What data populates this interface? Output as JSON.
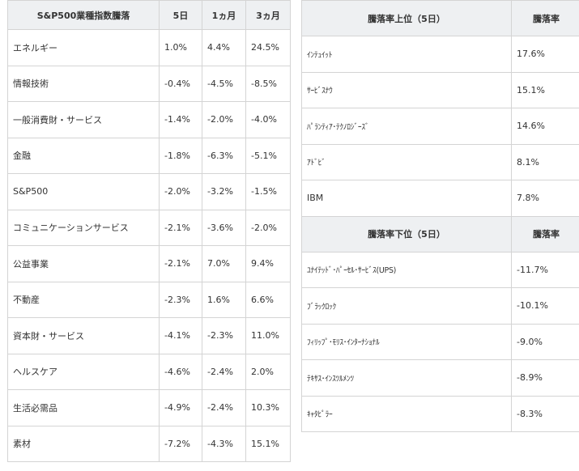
{
  "left_table": {
    "headers": [
      "S&P500業種指数騰落",
      "5日",
      "1ヵ月",
      "3ヵ月"
    ],
    "rows": [
      [
        "エネルギー",
        "1.0%",
        "4.4%",
        "24.5%"
      ],
      [
        "情報技術",
        "-0.4%",
        "-4.5%",
        "-8.5%"
      ],
      [
        "一般消費財・サービス",
        "-1.4%",
        "-2.0%",
        "-4.0%"
      ],
      [
        "金融",
        "-1.8%",
        "-6.3%",
        "-5.1%"
      ],
      [
        "S&P500",
        "-2.0%",
        "-3.2%",
        "-1.5%"
      ],
      [
        "コミュニケーションサービス",
        "-2.1%",
        "-3.6%",
        "-2.0%"
      ],
      [
        "公益事業",
        "-2.1%",
        "7.0%",
        "9.4%"
      ],
      [
        "不動産",
        "-2.3%",
        "1.6%",
        "6.6%"
      ],
      [
        "資本財・サービス",
        "-4.1%",
        "-2.3%",
        "11.0%"
      ],
      [
        "ヘルスケア",
        "-4.6%",
        "-2.4%",
        "2.0%"
      ],
      [
        "生活必需品",
        "-4.9%",
        "-2.4%",
        "10.3%"
      ],
      [
        "素材",
        "-7.2%",
        "-4.3%",
        "15.1%"
      ]
    ]
  },
  "top_table": {
    "headers": [
      "騰落率上位（5日）",
      "騰落率"
    ],
    "rows": [
      [
        "ｲﾝﾃｭｲｯﾄ",
        "17.6%"
      ],
      [
        "ｻｰﾋﾞｽﾅｳ",
        "15.1%"
      ],
      [
        "ﾊﾟﾗﾝﾃｨｱ･ﾃｸﾉﾛｼﾞｰｽﾞ",
        "14.6%"
      ],
      [
        "ｱﾄﾞﾋﾞ",
        "8.1%"
      ],
      [
        "IBM",
        "7.8%"
      ]
    ]
  },
  "bottom_table": {
    "headers": [
      "騰落率下位（5日）",
      "騰落率"
    ],
    "rows": [
      [
        "ﾕﾅｲﾃｯﾄﾞ･ﾊﾟｰｾﾙ･ｻｰﾋﾞｽ(UPS)",
        "-11.7%"
      ],
      [
        "ﾌﾞﾗｯｸﾛｯｸ",
        "-10.1%"
      ],
      [
        "ﾌｨﾘｯﾌﾟ･ﾓﾘｽ･ｲﾝﾀｰﾅｼｮﾅﾙ",
        "-9.0%"
      ],
      [
        "ﾃｷｻｽ･ｲﾝｽﾂﾙﾒﾝﾂ",
        "-8.9%"
      ],
      [
        "ｷｬﾀﾋﾟﾗｰ",
        "-8.3%"
      ]
    ]
  }
}
